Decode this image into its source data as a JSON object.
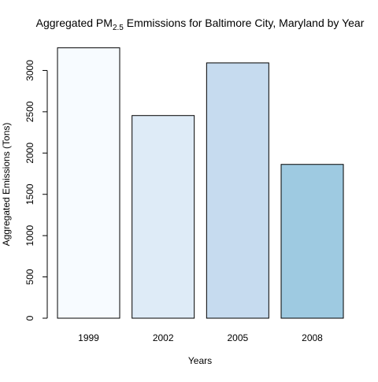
{
  "chart_data": {
    "type": "bar",
    "title": {
      "prefix": "Aggregated PM",
      "subscript": "2.5",
      "suffix": " Emmissions for Baltimore City, Maryland by Year"
    },
    "xlabel": "Years",
    "ylabel": "Aggregated Emissions (Tons)",
    "categories": [
      "1999",
      "2002",
      "2005",
      "2008"
    ],
    "values": [
      3274.18,
      2453.92,
      3091.35,
      1862.28
    ],
    "colors": [
      "#F7FBFF",
      "#DEEBF7",
      "#C6DBEF",
      "#9ECAE1"
    ],
    "border_color": "#000000",
    "ylim": [
      0,
      3300
    ],
    "yticks": [
      0,
      500,
      1000,
      1500,
      2000,
      2500,
      3000
    ],
    "grid": false,
    "legend": "none"
  }
}
